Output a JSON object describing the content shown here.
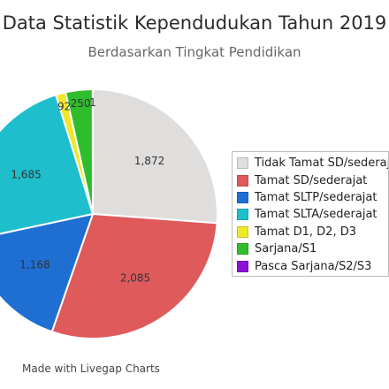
{
  "chart_data": {
    "type": "pie",
    "title": "Data Statistik Kependudukan Tahun 2019",
    "subtitle": "Berdasarkan Tingkat Pendidikan",
    "categories": [
      "Tidak Tamat SD/sederajat",
      "Tamat SD/sederajat",
      "Tamat SLTP/sederajat",
      "Tamat SLTA/sederajat",
      "Tamat D1, D2, D3",
      "Sarjana/S1",
      "Pasca Sarjana/S2/S3"
    ],
    "values": [
      1872,
      2085,
      1168,
      1685,
      92,
      250,
      1
    ],
    "data_labels": [
      "1,872",
      "2,085",
      "1,168",
      "1,685",
      "92",
      "250",
      "1"
    ],
    "colors": [
      "#e0dedd",
      "#df5a5b",
      "#1f6fd2",
      "#1ebecc",
      "#f0e72a",
      "#2fbd2c",
      "#8a14d6"
    ],
    "legend_position": "right",
    "start_angle": "top, clockwise"
  },
  "footer": "Made with Livegap Charts"
}
